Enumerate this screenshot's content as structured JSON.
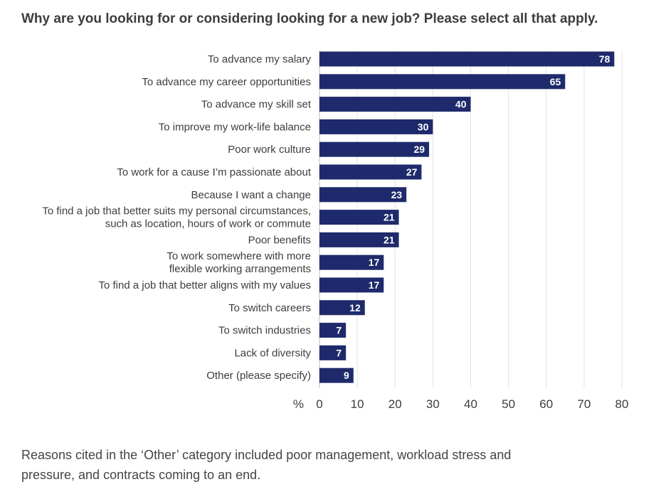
{
  "chart_data": {
    "type": "bar",
    "orientation": "horizontal",
    "title": "Why are you looking for or considering looking for a new job? Please select all that apply.",
    "xlabel": "%",
    "ylabel": "",
    "xlim": [
      0,
      80
    ],
    "xticks": [
      0,
      10,
      20,
      30,
      40,
      50,
      60,
      70,
      80
    ],
    "grid": true,
    "bar_color": "#1e2a6b",
    "categories": [
      [
        "To advance my salary"
      ],
      [
        "To advance my career opportunities"
      ],
      [
        "To advance my skill set"
      ],
      [
        "To improve my work-life balance"
      ],
      [
        "Poor work culture"
      ],
      [
        "To work for a cause I’m passionate about"
      ],
      [
        "Because I want a change"
      ],
      [
        "To find a job that better suits my personal circumstances,",
        "such as location, hours of work or commute"
      ],
      [
        "Poor benefits"
      ],
      [
        "To work somewhere with more",
        "flexible working arrangements"
      ],
      [
        "To find a job that better aligns with my values"
      ],
      [
        "To switch careers"
      ],
      [
        "To switch industries"
      ],
      [
        "Lack of diversity"
      ],
      [
        "Other (please specify)"
      ]
    ],
    "values": [
      78,
      65,
      40,
      30,
      29,
      27,
      23,
      21,
      21,
      17,
      17,
      12,
      7,
      7,
      9
    ]
  },
  "footnote": "Reasons cited in the ‘Other’ category included poor management, workload stress and pressure, and contracts coming to an end."
}
